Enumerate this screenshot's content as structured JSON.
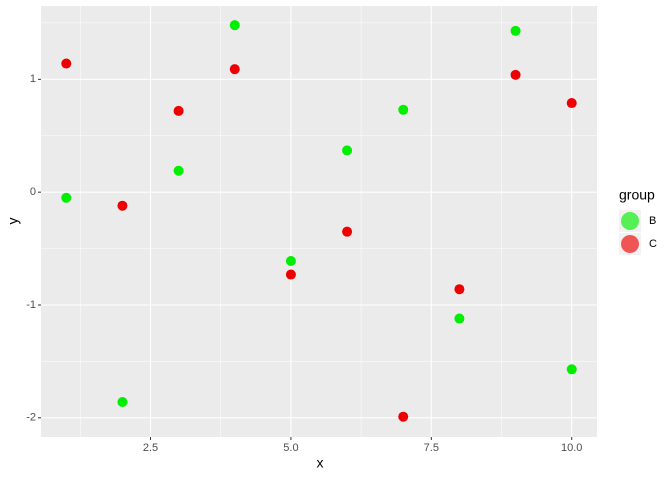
{
  "chart_data": {
    "type": "scatter",
    "x_label": "x",
    "y_label": "y",
    "legend_title": "group",
    "legend_position": "right",
    "grid": true,
    "xlim": [
      0.55,
      10.45
    ],
    "ylim": [
      -2.17,
      1.65
    ],
    "xticks": [
      2.5,
      {
        "value": 5,
        "label": "5.0"
      },
      7.5,
      {
        "value": 10,
        "label": "10.0"
      }
    ],
    "yticks": [
      -2,
      -1,
      0,
      1
    ],
    "series": [
      {
        "name": "B",
        "color": "#00ee00",
        "x": [
          1,
          2,
          3,
          4,
          5,
          6,
          7,
          8,
          9,
          10
        ],
        "values": [
          -0.05,
          -1.86,
          0.19,
          1.48,
          -0.61,
          0.37,
          0.73,
          -1.12,
          1.43,
          -1.57
        ]
      },
      {
        "name": "C",
        "color": "#ee0000",
        "x": [
          1,
          2,
          3,
          4,
          5,
          6,
          7,
          8,
          9,
          10
        ],
        "values": [
          1.14,
          -0.12,
          0.72,
          1.09,
          -0.73,
          -0.35,
          -1.99,
          -0.86,
          1.04,
          0.79
        ]
      }
    ]
  }
}
